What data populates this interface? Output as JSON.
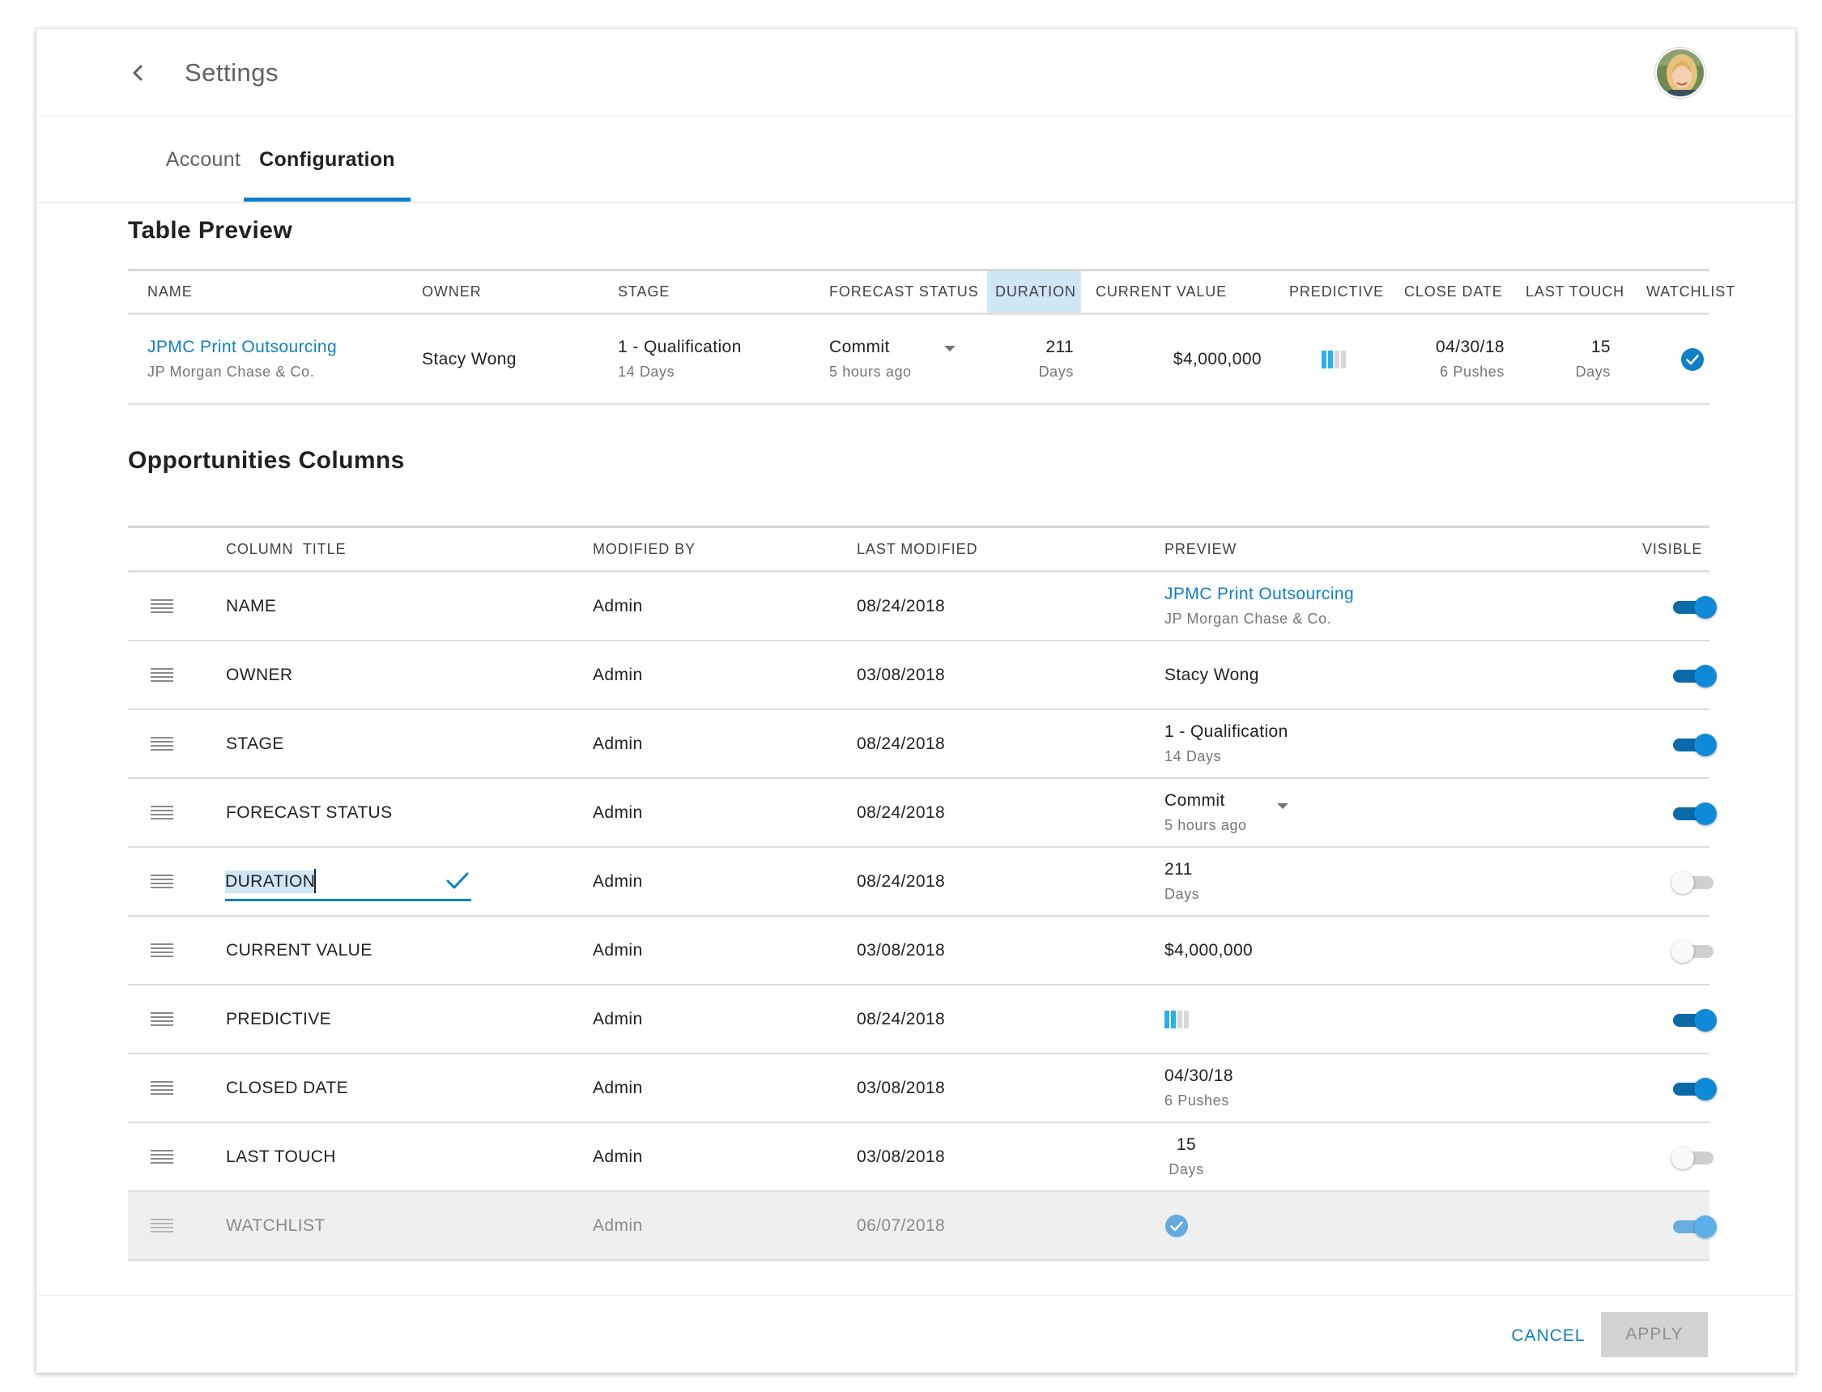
{
  "header": {
    "title": "Settings",
    "back_icon": "chevron-left-icon",
    "avatar": "user-avatar"
  },
  "tabs": [
    {
      "label": "Account",
      "active": false
    },
    {
      "label": "Configuration",
      "active": true
    }
  ],
  "colors": {
    "accent": "#0e7fc8",
    "highlight": "#cfe6f5",
    "toggle_on": "#0e8ad9",
    "toggle_off": "#cfcfcf"
  },
  "table_preview": {
    "title": "Table Preview",
    "headers": [
      "NAME",
      "OWNER",
      "STAGE",
      "FORECAST STATUS",
      "DURATION",
      "CURRENT VALUE",
      "PREDICTIVE",
      "CLOSE DATE",
      "LAST TOUCH",
      "WATCHLIST"
    ],
    "highlighted_header": "DURATION",
    "row": {
      "name": "JPMC Print Outsourcing",
      "company": "JP Morgan Chase & Co.",
      "owner": "Stacy Wong",
      "stage": "1 - Qualification",
      "stage_sub": "14 Days",
      "forecast": "Commit",
      "forecast_sub": "5 hours ago",
      "duration": "211",
      "duration_sub": "Days",
      "current_value": "$4,000,000",
      "predictive_level": 2,
      "predictive_total": 4,
      "close_date": "04/30/18",
      "close_sub": "6 Pushes",
      "last_touch": "15",
      "last_touch_sub": "Days",
      "watchlist": true
    }
  },
  "columns": {
    "title": "Opportunities Columns",
    "headers": {
      "column_title": "COLUMN  TITLE",
      "modified_by": "MODIFIED BY",
      "last_modified": "LAST MODIFIED",
      "preview": "PREVIEW",
      "visible": "VISIBLE"
    },
    "rows": [
      {
        "title": "NAME",
        "modified_by": "Admin",
        "last_modified": "08/24/2018",
        "preview_main": "JPMC Print Outsourcing",
        "preview_sub": "JP Morgan Chase & Co.",
        "visible": true
      },
      {
        "title": "OWNER",
        "modified_by": "Admin",
        "last_modified": "03/08/2018",
        "preview_main": "Stacy Wong",
        "preview_sub": "",
        "visible": true
      },
      {
        "title": "STAGE",
        "modified_by": "Admin",
        "last_modified": "08/24/2018",
        "preview_main": "1 - Qualification",
        "preview_sub": "14 Days",
        "visible": true
      },
      {
        "title": "FORECAST STATUS",
        "modified_by": "Admin",
        "last_modified": "08/24/2018",
        "preview_main": "Commit",
        "preview_sub": "5 hours ago",
        "visible": true
      },
      {
        "title": "DURATION",
        "modified_by": "Admin",
        "last_modified": "08/24/2018",
        "preview_main": "211",
        "preview_sub": "Days",
        "visible": false,
        "editing": true
      },
      {
        "title": "CURRENT VALUE",
        "modified_by": "Admin",
        "last_modified": "03/08/2018",
        "preview_main": "$4,000,000",
        "preview_sub": "",
        "visible": false
      },
      {
        "title": "PREDICTIVE",
        "modified_by": "Admin",
        "last_modified": "08/24/2018",
        "preview_level": 2,
        "visible": true
      },
      {
        "title": "CLOSED DATE",
        "modified_by": "Admin",
        "last_modified": "03/08/2018",
        "preview_main": "04/30/18",
        "preview_sub": "6 Pushes",
        "visible": true
      },
      {
        "title": "LAST TOUCH",
        "modified_by": "Admin",
        "last_modified": "03/08/2018",
        "preview_main": "15",
        "preview_sub": "Days",
        "visible": false
      },
      {
        "title": "WATCHLIST",
        "modified_by": "Admin",
        "last_modified": "06/07/2018",
        "preview_check": true,
        "visible": true,
        "disabled": true
      }
    ]
  },
  "footer": {
    "cancel_label": "CANCEL",
    "apply_label": "APPLY"
  }
}
